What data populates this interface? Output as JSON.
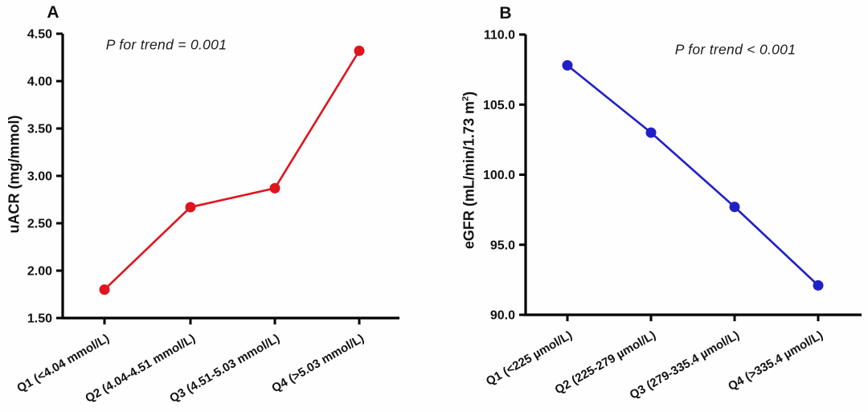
{
  "figure": {
    "background": "#fefefe",
    "axis_color": "#000000"
  },
  "chart_data": [
    {
      "type": "line",
      "panel_letter": "A",
      "annotation": "P for trend = 0.001",
      "categories": [
        "Q1 (<4.04 mmol/L)",
        "Q2 (4.04-4.51 mmol/L)",
        "Q3 (4.51-5.03 mmol/L)",
        "Q4 (>5.03 mmol/L)"
      ],
      "series": [
        {
          "name": "uACR",
          "values": [
            1.8,
            2.67,
            2.87,
            4.32
          ]
        }
      ],
      "xlabel": "",
      "ylabel": "uACR (mg/mmol)",
      "ylabel_parts": {
        "pre": "uACR (mg/mmol)",
        "sup": "",
        "post": ""
      },
      "ylim": [
        1.5,
        4.5
      ],
      "yticks": [
        1.5,
        2.0,
        2.5,
        3.0,
        3.5,
        4.0,
        4.5
      ],
      "ytick_labels": [
        "1.50",
        "2.00",
        "2.50",
        "3.00",
        "3.50",
        "4.00",
        "4.50"
      ],
      "line_color": "#e0141d",
      "marker": "circle",
      "grid": false,
      "legend": "none"
    },
    {
      "type": "line",
      "panel_letter": "B",
      "annotation": "P for trend < 0.001",
      "categories": [
        "Q1 (<225 µmol/L)",
        "Q2 (225-279 µmol/L)",
        "Q3 (279-335.4 µmol/L)",
        "Q4 (>335.4 µmol/L)"
      ],
      "series": [
        {
          "name": "eGFR",
          "values": [
            107.8,
            103.0,
            97.7,
            92.1
          ]
        }
      ],
      "xlabel": "",
      "ylabel": "eGFR (mL/min/1.73 m2)",
      "ylabel_parts": {
        "pre": "eGFR (mL/min/1.73 m",
        "sup": "2",
        "post": ")"
      },
      "ylim": [
        90.0,
        110.0
      ],
      "yticks": [
        90.0,
        95.0,
        100.0,
        105.0,
        110.0
      ],
      "ytick_labels": [
        "90.0",
        "95.0",
        "100.0",
        "105.0",
        "110.0"
      ],
      "line_color": "#2020c8",
      "marker": "circle",
      "grid": false,
      "legend": "none"
    }
  ]
}
